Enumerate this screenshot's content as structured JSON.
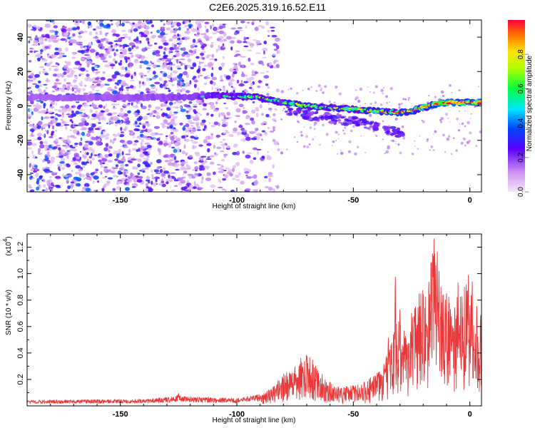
{
  "title": "C2E6.2025.319.16.52.E11",
  "chart_data": [
    {
      "type": "heatmap",
      "xlabel": "Height of straight line (km)",
      "ylabel": "Frequency (Hz)",
      "xlim": [
        -190,
        5
      ],
      "ylim": [
        -50,
        50
      ],
      "xticks": [
        -150,
        -100,
        -50,
        0
      ],
      "xtick_labels": [
        "-150",
        "-100",
        "-50",
        "0"
      ],
      "yticks": [
        -40,
        -20,
        0,
        20,
        40
      ],
      "ytick_labels": [
        "-40",
        "-20",
        "0",
        "20",
        "40"
      ],
      "grid": false,
      "colorbar": {
        "label": "Normalized spectral amplitude",
        "range": [
          0,
          1
        ],
        "ticks": [
          0.0,
          0.2,
          0.4,
          0.6,
          0.8
        ],
        "tick_labels": [
          "0.0",
          "0.2",
          "0.4",
          "0.6",
          "0.8"
        ],
        "colormap": "white-violet-blue-cyan-green-yellow-red"
      },
      "ridge": {
        "x": [
          -190,
          -150,
          -125,
          -110,
          -90,
          -80,
          -70,
          -60,
          -50,
          -40,
          -30,
          -25,
          -20,
          -15,
          -10,
          -5,
          0,
          5
        ],
        "y": [
          5,
          5,
          5,
          6,
          5,
          2,
          0,
          -1,
          -2,
          -3,
          -4,
          -3,
          -1,
          1,
          2,
          2,
          2,
          2
        ],
        "amplitude": [
          0.15,
          0.2,
          0.25,
          0.4,
          0.55,
          0.5,
          0.6,
          0.55,
          0.6,
          0.65,
          0.8,
          0.7,
          0.75,
          0.9,
          0.95,
          0.9,
          0.9,
          0.9
        ]
      },
      "lower_branch": {
        "x": [
          -80,
          -70,
          -60,
          -50,
          -40,
          -35,
          -30,
          -28
        ],
        "y": [
          -2,
          -5,
          -7,
          -9,
          -12,
          -14,
          -16,
          -19
        ]
      },
      "noise_region_x": [
        -190,
        -90
      ]
    },
    {
      "type": "line",
      "xlabel": "Height of straight line (km)",
      "ylabel": "SNR (10 * v/v)",
      "y_multiplier": "(x10",
      "y_multiplier_exp": "4",
      "y_multiplier_close": ")",
      "xlim": [
        -190,
        5
      ],
      "ylim": [
        0,
        1.3
      ],
      "xticks": [
        -150,
        -100,
        -50,
        0
      ],
      "xtick_labels": [
        "-150",
        "-100",
        "-50",
        "0"
      ],
      "yticks": [
        0.2,
        0.4,
        0.6,
        0.8,
        1.0,
        1.2
      ],
      "ytick_labels": [
        "0.2",
        "0.4",
        "0.6",
        "0.8",
        "1.0",
        "1.2"
      ],
      "grid": false,
      "color": "#e8383a",
      "envelope": {
        "x": [
          -190,
          -140,
          -126,
          -125,
          -124,
          -100,
          -90,
          -85,
          -80,
          -75,
          -72,
          -70,
          -67,
          -65,
          -60,
          -55,
          -50,
          -45,
          -40,
          -35,
          -32,
          -30,
          -28,
          -25,
          -22,
          -20,
          -18,
          -16,
          -15,
          -13,
          -10,
          -8,
          -5,
          -3,
          -2,
          0,
          1,
          3,
          5
        ],
        "y": [
          0.03,
          0.035,
          0.05,
          0.08,
          0.05,
          0.04,
          0.06,
          0.1,
          0.18,
          0.22,
          0.28,
          0.3,
          0.25,
          0.2,
          0.14,
          0.1,
          0.12,
          0.14,
          0.18,
          0.3,
          0.45,
          0.5,
          0.42,
          0.5,
          0.7,
          0.75,
          0.72,
          0.85,
          1.0,
          0.75,
          0.6,
          0.62,
          0.72,
          0.6,
          0.7,
          0.85,
          0.6,
          0.45,
          0.55
        ]
      },
      "peaks": {
        "x": [
          -70,
          -50,
          -42,
          -35,
          -32,
          -30,
          -25,
          -20,
          -16,
          -15,
          -14,
          -10,
          -5,
          0,
          1,
          3
        ],
        "y": [
          0.34,
          0.16,
          0.2,
          0.58,
          1.1,
          0.82,
          0.7,
          0.95,
          1.15,
          1.3,
          1.2,
          0.85,
          0.8,
          0.75,
          1.06,
          0.85
        ]
      }
    }
  ]
}
